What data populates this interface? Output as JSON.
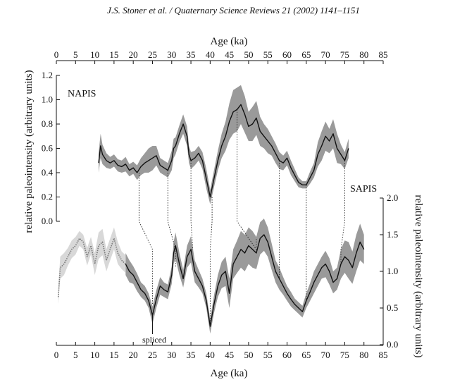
{
  "header": {
    "citation": "J.S. Stoner et al. / Quaternary Science Reviews 21 (2002) 1141–1151"
  },
  "chart_data": {
    "type": "line",
    "top_axis": {
      "label": "Age (ka)",
      "range": [
        0,
        85
      ],
      "ticks": [
        0,
        5,
        10,
        15,
        20,
        25,
        30,
        35,
        40,
        45,
        50,
        55,
        60,
        65,
        70,
        75,
        80,
        85
      ]
    },
    "bottom_axis": {
      "label": "Age (ka)",
      "range": [
        0,
        85
      ],
      "ticks": [
        0,
        5,
        10,
        15,
        20,
        25,
        30,
        35,
        40,
        45,
        50,
        55,
        60,
        65,
        70,
        75,
        80,
        85
      ]
    },
    "left_axis": {
      "label": "relative paleointensity (arbitrary units)",
      "range": [
        0,
        1.2
      ],
      "ticks": [
        "0.0",
        "0.2",
        "0.4",
        "0.6",
        "0.8",
        "1.0",
        "1.2"
      ]
    },
    "right_axis": {
      "label": "relative paleointensity (arbitrary units)",
      "range": [
        0,
        2.0
      ],
      "ticks": [
        "0.0",
        "0.5",
        "1.0",
        "1.5",
        "2.0"
      ]
    },
    "annotations": {
      "napis": "NAPIS",
      "sapis": "SAPIS",
      "spliced": "spliced"
    },
    "colors": {
      "line": "#111111",
      "band": "#9a9a9a",
      "band_light": "#d8d8d8",
      "spliced_line": "#777777"
    },
    "series": [
      {
        "name": "NAPIS",
        "axis": "left",
        "x": [
          11,
          11.5,
          12,
          13,
          14,
          15,
          16,
          17,
          18,
          19,
          20,
          21,
          22,
          23,
          24,
          25,
          26,
          27,
          28,
          29,
          30,
          30.5,
          31,
          32,
          33,
          34,
          34.5,
          35,
          36,
          37,
          38,
          39,
          40,
          41,
          42,
          43,
          44,
          45,
          46,
          47,
          48,
          49,
          50,
          51,
          52,
          53,
          54,
          55,
          56,
          57,
          58,
          59,
          60,
          61,
          62,
          63,
          64,
          65,
          66,
          67,
          68,
          69,
          70,
          71,
          72,
          73,
          74,
          75,
          76
        ],
        "y": [
          0.48,
          0.62,
          0.55,
          0.5,
          0.48,
          0.5,
          0.46,
          0.45,
          0.47,
          0.42,
          0.44,
          0.4,
          0.45,
          0.48,
          0.5,
          0.52,
          0.54,
          0.46,
          0.44,
          0.42,
          0.5,
          0.6,
          0.62,
          0.72,
          0.8,
          0.7,
          0.55,
          0.5,
          0.52,
          0.56,
          0.5,
          0.35,
          0.2,
          0.35,
          0.5,
          0.62,
          0.7,
          0.82,
          0.9,
          0.92,
          0.96,
          0.88,
          0.78,
          0.8,
          0.85,
          0.74,
          0.7,
          0.66,
          0.62,
          0.56,
          0.5,
          0.48,
          0.52,
          0.44,
          0.38,
          0.32,
          0.3,
          0.3,
          0.36,
          0.42,
          0.55,
          0.62,
          0.7,
          0.66,
          0.72,
          0.6,
          0.55,
          0.5,
          0.6
        ],
        "band": [
          0.08,
          0.1,
          0.08,
          0.06,
          0.05,
          0.05,
          0.05,
          0.05,
          0.06,
          0.05,
          0.05,
          0.06,
          0.07,
          0.08,
          0.1,
          0.1,
          0.08,
          0.06,
          0.06,
          0.06,
          0.08,
          0.08,
          0.07,
          0.07,
          0.08,
          0.08,
          0.07,
          0.07,
          0.06,
          0.06,
          0.07,
          0.08,
          0.06,
          0.07,
          0.08,
          0.1,
          0.12,
          0.15,
          0.18,
          0.18,
          0.16,
          0.15,
          0.12,
          0.14,
          0.14,
          0.12,
          0.1,
          0.1,
          0.08,
          0.08,
          0.07,
          0.06,
          0.06,
          0.06,
          0.05,
          0.04,
          0.03,
          0.03,
          0.05,
          0.06,
          0.1,
          0.12,
          0.12,
          0.1,
          0.12,
          0.12,
          0.08,
          0.07,
          0.08
        ]
      },
      {
        "name": "SAPIS",
        "axis": "right",
        "x": [
          18,
          19,
          20,
          21,
          22,
          23,
          24,
          25,
          26,
          27,
          28,
          29,
          30,
          30.5,
          31,
          32,
          33,
          34,
          35,
          36,
          37,
          38,
          39,
          40,
          41,
          42,
          43,
          44,
          45,
          46,
          47,
          48,
          49,
          50,
          51,
          52,
          53,
          54,
          55,
          56,
          57,
          58,
          59,
          60,
          61,
          62,
          63,
          64,
          65,
          66,
          67,
          68,
          69,
          70,
          71,
          72,
          73,
          74,
          75,
          76,
          77,
          78,
          79,
          80
        ],
        "y": [
          1.1,
          1.0,
          0.95,
          0.85,
          0.75,
          0.7,
          0.6,
          0.4,
          0.62,
          0.8,
          0.75,
          0.72,
          0.95,
          1.25,
          1.35,
          1.1,
          0.9,
          1.2,
          1.3,
          1.0,
          0.9,
          0.8,
          0.6,
          0.25,
          0.55,
          0.8,
          0.95,
          1.0,
          0.7,
          1.1,
          1.2,
          1.3,
          1.25,
          1.35,
          1.3,
          1.25,
          1.45,
          1.5,
          1.4,
          1.2,
          1.0,
          0.9,
          0.8,
          0.7,
          0.62,
          0.55,
          0.5,
          0.45,
          0.6,
          0.72,
          0.85,
          0.95,
          1.05,
          1.1,
          1.0,
          0.85,
          0.9,
          1.1,
          1.2,
          1.15,
          1.05,
          1.25,
          1.4,
          1.3
        ],
        "band": [
          0.15,
          0.15,
          0.12,
          0.12,
          0.1,
          0.1,
          0.1,
          0.12,
          0.12,
          0.12,
          0.1,
          0.1,
          0.12,
          0.15,
          0.18,
          0.15,
          0.12,
          0.15,
          0.18,
          0.15,
          0.12,
          0.1,
          0.1,
          0.1,
          0.12,
          0.15,
          0.18,
          0.2,
          0.2,
          0.2,
          0.22,
          0.25,
          0.25,
          0.25,
          0.25,
          0.22,
          0.22,
          0.22,
          0.2,
          0.18,
          0.15,
          0.15,
          0.12,
          0.1,
          0.1,
          0.08,
          0.08,
          0.08,
          0.1,
          0.12,
          0.15,
          0.15,
          0.15,
          0.18,
          0.18,
          0.15,
          0.15,
          0.2,
          0.22,
          0.25,
          0.22,
          0.25,
          0.25,
          0.2
        ]
      },
      {
        "name": "spliced",
        "axis": "right",
        "x": [
          0.5,
          1,
          2,
          3,
          4,
          5,
          6,
          7,
          8,
          9,
          10,
          11,
          12,
          13,
          14,
          15,
          16,
          17,
          18
        ],
        "y": [
          0.65,
          1.05,
          1.1,
          1.2,
          1.3,
          1.35,
          1.45,
          1.4,
          1.2,
          1.35,
          1.1,
          1.35,
          1.4,
          1.15,
          1.3,
          1.45,
          1.25,
          1.15,
          1.1
        ],
        "band": [
          0.1,
          0.15,
          0.15,
          0.12,
          0.12,
          0.12,
          0.1,
          0.1,
          0.12,
          0.12,
          0.15,
          0.18,
          0.18,
          0.15,
          0.15,
          0.15,
          0.15,
          0.12,
          0.12
        ]
      }
    ],
    "tie_lines": [
      {
        "napis_x": 21.5,
        "napis_y": 0.4,
        "sapis_x": 25,
        "sapis_y": 0.55
      },
      {
        "napis_x": 29,
        "napis_y": 0.42,
        "sapis_x": 31,
        "sapis_y": 1.05
      },
      {
        "napis_x": 35,
        "napis_y": 0.5,
        "sapis_x": 35.5,
        "sapis_y": 1.3
      },
      {
        "napis_x": 40.5,
        "napis_y": 0.2,
        "sapis_x": 40,
        "sapis_y": 0.25
      },
      {
        "napis_x": 47,
        "napis_y": 0.92,
        "sapis_x": 52,
        "sapis_y": 1.45
      },
      {
        "napis_x": 58,
        "napis_y": 0.5,
        "sapis_x": 58,
        "sapis_y": 0.9
      },
      {
        "napis_x": 65,
        "napis_y": 0.3,
        "sapis_x": 65,
        "sapis_y": 0.6
      },
      {
        "napis_x": 75,
        "napis_y": 0.5,
        "sapis_x": 74,
        "sapis_y": 1.1
      }
    ]
  }
}
